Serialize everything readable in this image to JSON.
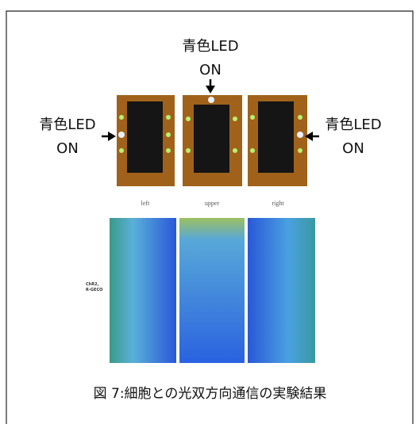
{
  "annotations": {
    "upper": {
      "line1": "青色LED",
      "line2": "ON"
    },
    "left": {
      "line1": "青色LED",
      "line2": "ON"
    },
    "right": {
      "line1": "青色LED",
      "line2": "ON"
    }
  },
  "panels": [
    "left",
    "upper",
    "right"
  ],
  "row_label": [
    "ChR2,",
    "R-GECO"
  ],
  "caption": "図 7:細胞との光双方向通信の実験結果"
}
